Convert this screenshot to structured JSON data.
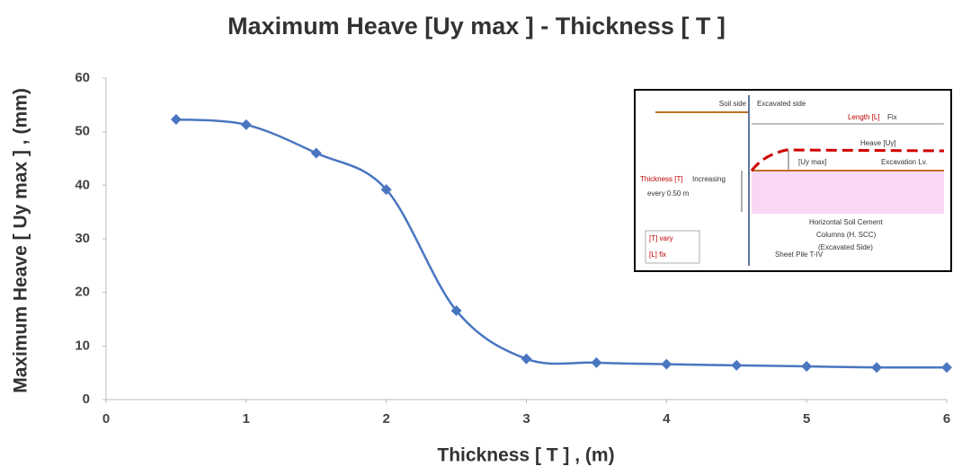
{
  "chart_data": {
    "type": "line",
    "title": "Maximum Heave [Uy max ] - Thickness [ T ]",
    "x_label": "Thickness [ T ] , (m)",
    "y_label": "Maximum Heave [ Uy max ] , (mm)",
    "x": [
      0.5,
      1,
      1.5,
      2,
      2.5,
      3,
      3.5,
      4,
      4.5,
      5,
      5.5,
      6
    ],
    "series": [
      {
        "name": "Maximum Heave",
        "color": "#4a76c0",
        "values": [
          52.3,
          51.3,
          46,
          39.2,
          16.6,
          7.6,
          6.9,
          6.6,
          6.4,
          6.2,
          6.0,
          6.0
        ]
      }
    ],
    "xlim": [
      0,
      6
    ],
    "xticks": [
      0,
      1,
      2,
      3,
      4,
      5,
      6
    ],
    "ylim": [
      0,
      60
    ],
    "yticks": [
      0,
      10,
      20,
      30,
      40,
      50,
      60
    ],
    "grid": false,
    "smooth": true
  },
  "inset": {
    "soil_side": "Soil side",
    "excavated_side": "Excavated side",
    "length": "Length [L]",
    "length_fix": "Fix",
    "heave": "Heave [Uy]",
    "uy_max": "[Uy max]",
    "excavation_level": "Excavation Lv.",
    "thickness": "Thickness [T]",
    "increasing": "Increasing",
    "every": "every 0.50 m",
    "hscc": [
      "Horizontal Soil Cement",
      "Columns (H. SCC)",
      "(Excavated Side)"
    ],
    "sheet_pile": "Sheet Pile T-IV",
    "t_vary": "[T] vary",
    "l_fix": "[L] fix"
  }
}
